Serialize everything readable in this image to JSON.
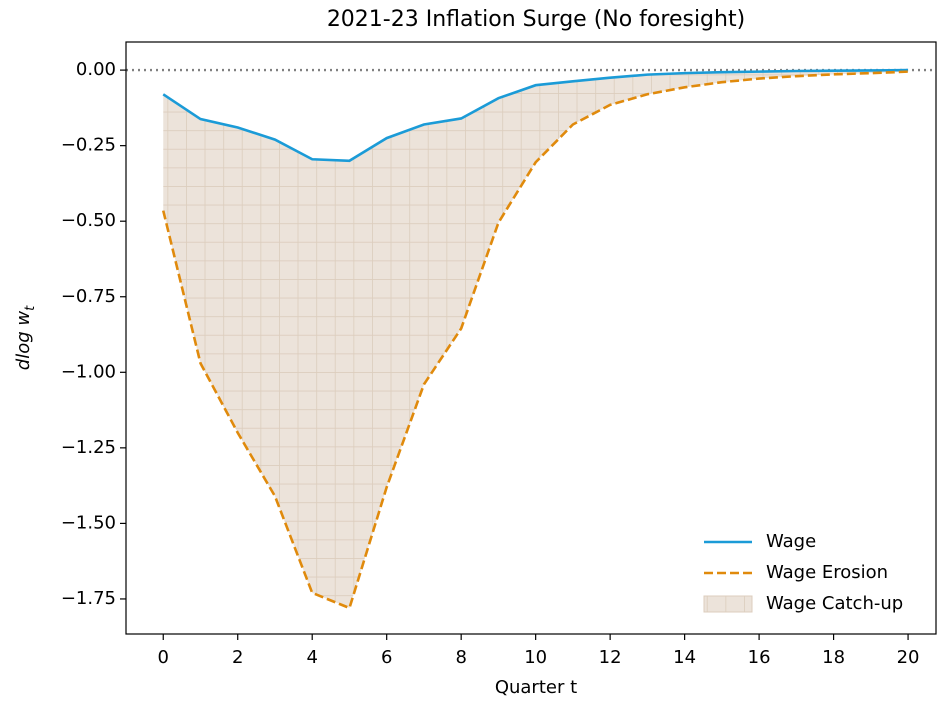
{
  "chart_data": {
    "type": "line",
    "title": "2021-23 Inflation Surge (No foresight)",
    "x_label": "Quarter t",
    "y_label": {
      "main": "dlog w",
      "sub": "t"
    },
    "x": [
      0,
      1,
      2,
      3,
      4,
      5,
      6,
      7,
      8,
      9,
      10,
      11,
      12,
      13,
      14,
      15,
      16,
      17,
      18,
      19,
      20
    ],
    "series": [
      {
        "name": "Wage",
        "color": "#1b9bd7",
        "style": "solid",
        "values": [
          -0.08,
          -0.162,
          -0.19,
          -0.23,
          -0.295,
          -0.3,
          -0.225,
          -0.18,
          -0.16,
          -0.093,
          -0.05,
          -0.037,
          -0.025,
          -0.015,
          -0.01,
          -0.007,
          -0.005,
          -0.003,
          -0.002,
          -0.001,
          0
        ]
      },
      {
        "name": "Wage Erosion",
        "color": "#e08a0c",
        "style": "dashed",
        "values": [
          -0.465,
          -0.97,
          -1.2,
          -1.41,
          -1.73,
          -1.78,
          -1.38,
          -1.04,
          -0.855,
          -0.505,
          -0.305,
          -0.18,
          -0.115,
          -0.08,
          -0.057,
          -0.04,
          -0.028,
          -0.02,
          -0.014,
          -0.01,
          -0.005
        ]
      }
    ],
    "fill_between": {
      "name": "Wage Catch-up",
      "color": "#d9c6b2",
      "hatch": "grid"
    },
    "hline": 0,
    "xlim": [
      -1,
      20.75
    ],
    "ylim": [
      -1.866,
      0.093
    ],
    "xticks": [
      0,
      2,
      4,
      6,
      8,
      10,
      12,
      14,
      16,
      18,
      20
    ],
    "yticks": [
      {
        "value": 0,
        "label": "0.00"
      },
      {
        "value": -0.25,
        "label": "−0.25"
      },
      {
        "value": -0.5,
        "label": "−0.50"
      },
      {
        "value": -0.75,
        "label": "−0.75"
      },
      {
        "value": -1,
        "label": "−1.00"
      },
      {
        "value": -1.25,
        "label": "−1.25"
      },
      {
        "value": -1.5,
        "label": "−1.50"
      },
      {
        "value": -1.75,
        "label": "−1.75"
      }
    ],
    "legend": "lower right"
  }
}
